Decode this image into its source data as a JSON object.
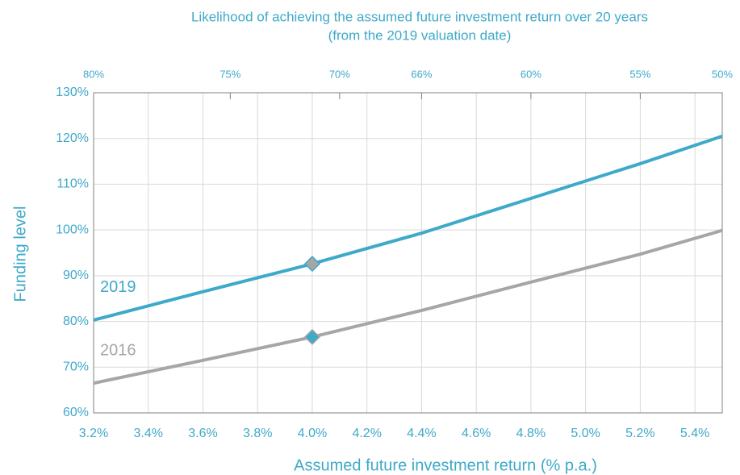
{
  "chart_data": {
    "type": "line",
    "title": "Likelihood of achieving the assumed future investment return over 20 years",
    "subtitle": "(from the 2019 valuation date)",
    "x_label": "Assumed future investment return (% p.a.)",
    "y_label": "Funding level",
    "x": [
      3.2,
      3.6,
      4.0,
      4.4,
      4.8,
      5.2,
      5.5
    ],
    "series": [
      {
        "name": "2019",
        "color": "#3fa9c9",
        "marker_color": "#a6a6a6",
        "values": [
          80.3,
          86.5,
          92.6,
          99.3,
          106.9,
          114.5,
          120.5
        ]
      },
      {
        "name": "2016",
        "color": "#a6a6a6",
        "marker_color": "#3fa9c9",
        "values": [
          66.5,
          71.5,
          76.6,
          82.4,
          88.6,
          94.7,
          99.9
        ]
      }
    ],
    "highlight_x": 4.0,
    "xlim": [
      3.2,
      5.5
    ],
    "ylim": [
      60,
      130
    ],
    "xticks": [
      {
        "value": 3.2,
        "label": "3.2%"
      },
      {
        "value": 3.4,
        "label": "3.4%"
      },
      {
        "value": 3.6,
        "label": "3.6%"
      },
      {
        "value": 3.8,
        "label": "3.8%"
      },
      {
        "value": 4.0,
        "label": "4.0%"
      },
      {
        "value": 4.2,
        "label": "4.2%"
      },
      {
        "value": 4.4,
        "label": "4.4%"
      },
      {
        "value": 4.6,
        "label": "4.6%"
      },
      {
        "value": 4.8,
        "label": "4.8%"
      },
      {
        "value": 5.0,
        "label": "5.0%"
      },
      {
        "value": 5.2,
        "label": "5.2%"
      },
      {
        "value": 5.4,
        "label": "5.4%"
      }
    ],
    "x2ticks": [
      {
        "value": 3.2,
        "label": "80%"
      },
      {
        "value": 3.7,
        "label": "75%"
      },
      {
        "value": 4.1,
        "label": "70%"
      },
      {
        "value": 4.4,
        "label": "66%"
      },
      {
        "value": 4.8,
        "label": "60%"
      },
      {
        "value": 5.2,
        "label": "55%"
      },
      {
        "value": 5.5,
        "label": "50%"
      }
    ],
    "yticks": [
      {
        "value": 60,
        "label": "60%"
      },
      {
        "value": 70,
        "label": "70%"
      },
      {
        "value": 80,
        "label": "80%"
      },
      {
        "value": 90,
        "label": "90%"
      },
      {
        "value": 100,
        "label": "100%"
      },
      {
        "value": 110,
        "label": "110%"
      },
      {
        "value": 120,
        "label": "120%"
      },
      {
        "value": 130,
        "label": "130%"
      }
    ],
    "grid": true
  }
}
